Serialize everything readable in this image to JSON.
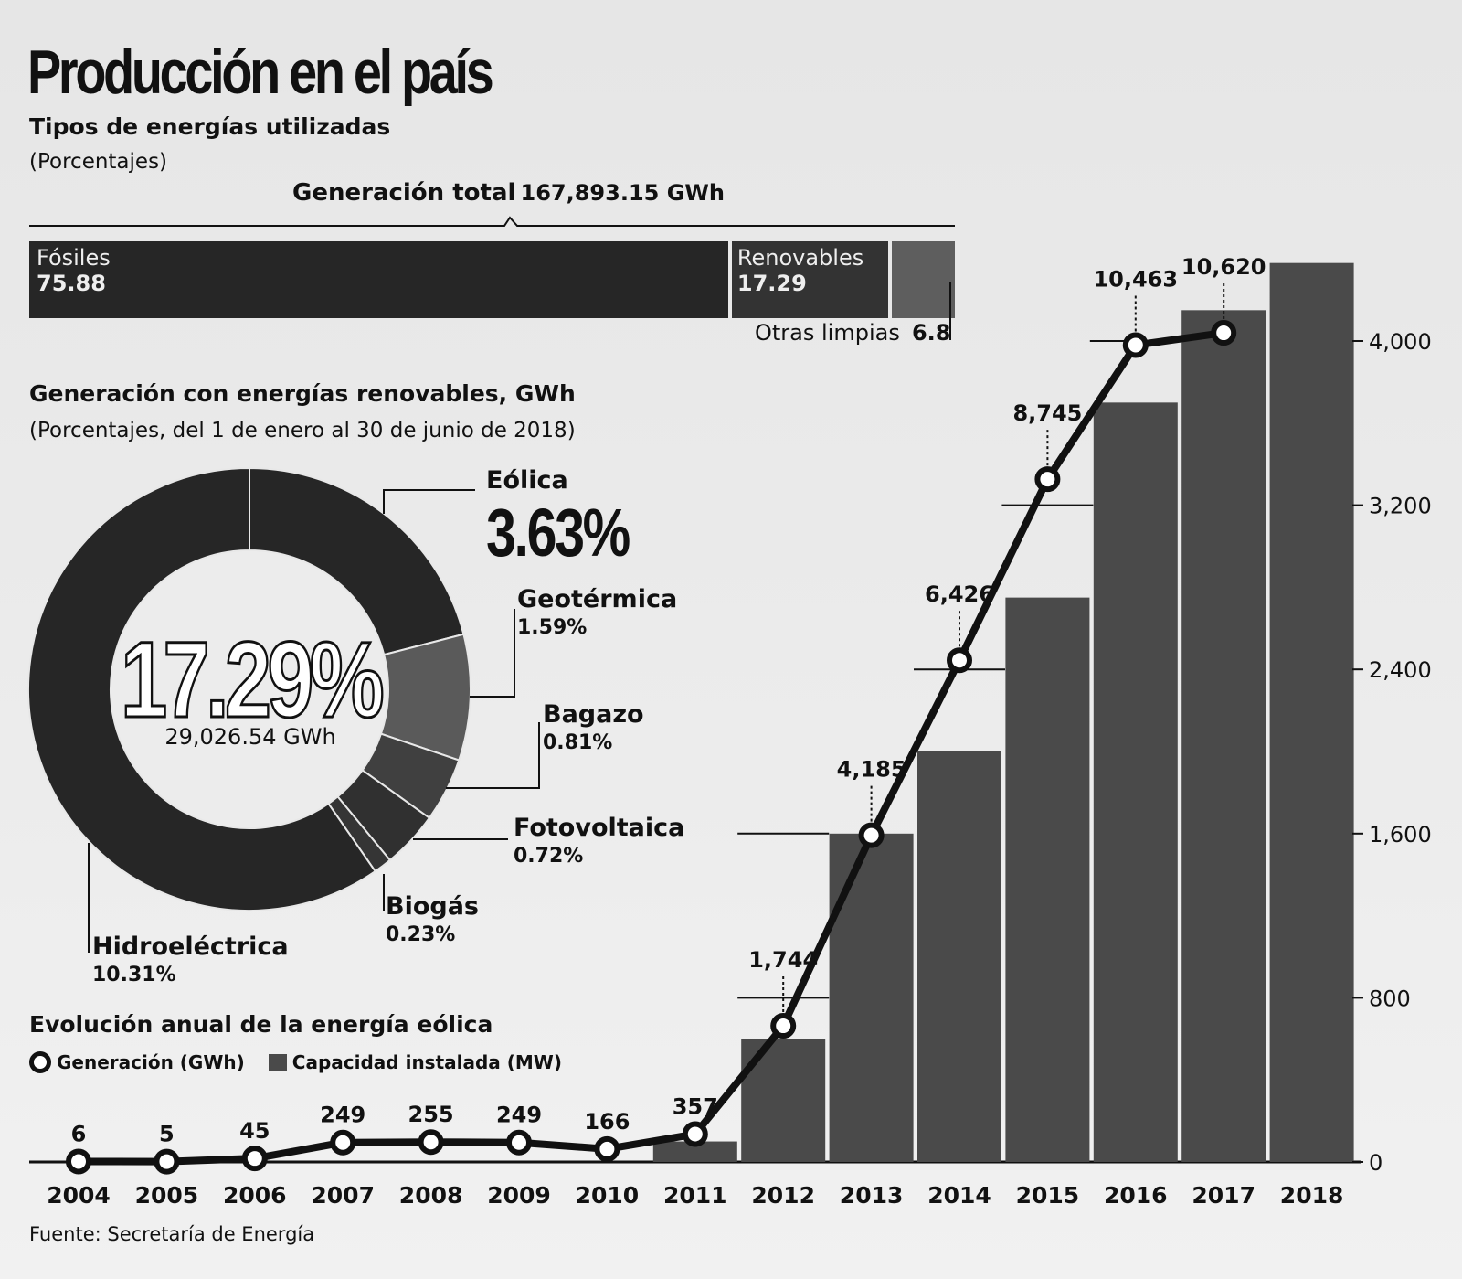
{
  "header": {
    "title": "Producción en el país",
    "subtitle": "Tipos de energías utilizadas",
    "note": "(Porcentajes)",
    "total_label": "Generación total",
    "total_value": "167,893.15 GWh"
  },
  "energy_mix": {
    "fosiles": {
      "label": "Fósiles",
      "value": "75.88",
      "pct": 75.88,
      "color": "#262626"
    },
    "renovables": {
      "label": "Renovables",
      "value": "17.29",
      "pct": 17.29,
      "color": "#333333"
    },
    "otras": {
      "label": "Otras limpias",
      "value": "6.8",
      "pct": 6.8,
      "color": "#5e5e5e"
    }
  },
  "renewables": {
    "title": "Generación con energías renovables, GWh",
    "note": "(Porcentajes, del 1 de enero  al 30 de junio de 2018)",
    "center_pct": "17.29%",
    "center_gwh": "29,026.54 GWh",
    "eolica": {
      "name": "Eólica",
      "pct": "3.63%"
    },
    "geotermica": {
      "name": "Geotérmica",
      "pct": "1.59%"
    },
    "bagazo": {
      "name": "Bagazo",
      "pct": "0.81%"
    },
    "fotovoltaica": {
      "name": "Fotovoltaica",
      "pct": "0.72%"
    },
    "biogas": {
      "name": "Biogás",
      "pct": "0.23%"
    },
    "hidroelectrica": {
      "name": "Hidroeléctrica",
      "pct": "10.31%"
    }
  },
  "wind": {
    "title": "Evolución anual de la energía eólica",
    "legend_generation": "Generación (GWh)",
    "legend_capacity": "Capacidad instalada (MW)"
  },
  "source": "Fuente: Secretaría de Energía",
  "chart_data": [
    {
      "type": "bar",
      "categories": [
        "Fósiles",
        "Renovables",
        "Otras limpias"
      ],
      "values": [
        75.88,
        17.29,
        6.8
      ],
      "title": "Tipos de energías utilizadas"
    },
    {
      "type": "pie",
      "title": "Generación con energías renovables, GWh",
      "categories": [
        "Eólica",
        "Geotérmica",
        "Bagazo",
        "Fotovoltaica",
        "Biogás",
        "Hidroeléctrica"
      ],
      "values": [
        3.63,
        1.59,
        0.81,
        0.72,
        0.23,
        10.31
      ],
      "colors": [
        "#262626",
        "#5a5a5a",
        "#404040",
        "#303030",
        "#353535",
        "#262626"
      ]
    },
    {
      "type": "line",
      "title": "Evolución anual de la energía eólica",
      "categories": [
        "2004",
        "2005",
        "2006",
        "2007",
        "2008",
        "2009",
        "2010",
        "2011",
        "2012",
        "2013",
        "2014",
        "2015",
        "2016",
        "2017",
        "2018"
      ],
      "series": [
        {
          "name": "Generación (GWh)",
          "type": "line",
          "values": [
            6,
            5,
            45,
            249,
            255,
            249,
            166,
            357,
            1744,
            4185,
            6426,
            8745,
            10463,
            10620,
            null
          ],
          "labels": [
            "6",
            "5",
            "45",
            "249",
            "255",
            "249",
            "166",
            "357",
            "1,744",
            "4,185",
            "6,426",
            "8,745",
            "10,463",
            "10,620",
            ""
          ]
        },
        {
          "name": "Capacidad instalada (MW)",
          "type": "bar",
          "values": [
            0,
            0,
            0,
            0,
            0,
            0,
            0,
            100,
            600,
            1600,
            2000,
            2750,
            3700,
            4150,
            4380
          ]
        }
      ],
      "ylim_right": [
        0,
        4400
      ],
      "yticks_right": [
        0,
        800,
        1600,
        2400,
        3200,
        4000
      ],
      "ytick_labels_right": [
        "0",
        "800",
        "1,600",
        "2,400",
        "3,200",
        "4,000"
      ],
      "ylim_left": [
        0,
        12000
      ]
    }
  ]
}
